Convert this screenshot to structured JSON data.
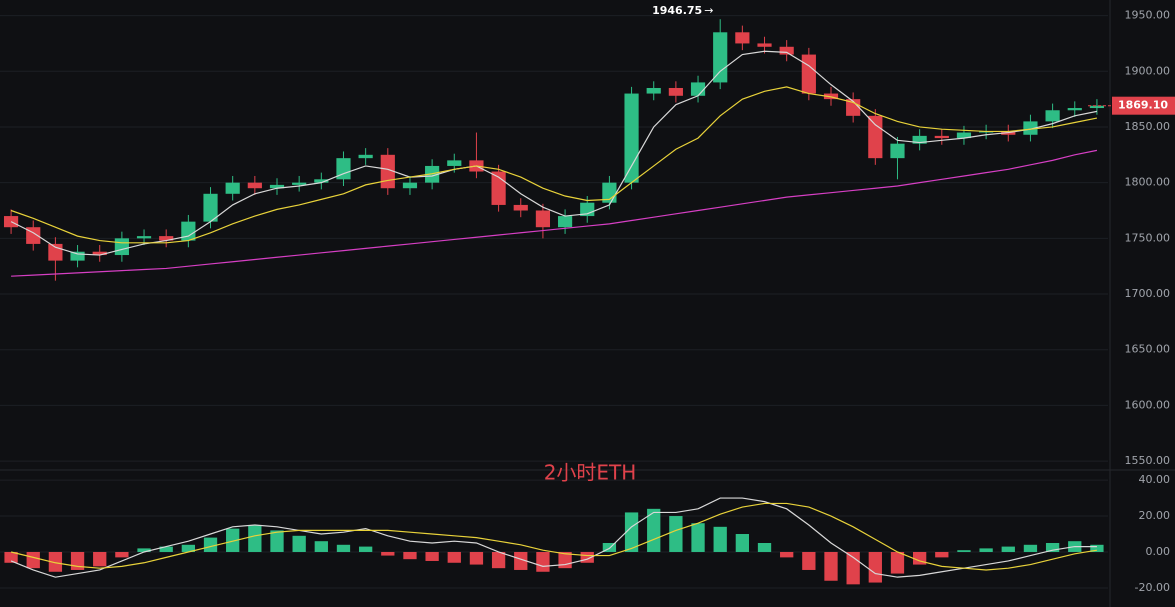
{
  "chart_data": [
    {
      "type": "candlestick",
      "up_color": "#2ebd85",
      "down_color": "#e0424b",
      "open": [
        1770,
        1760,
        1745,
        1730,
        1738,
        1735,
        1750,
        1752,
        1748,
        1765,
        1790,
        1800,
        1795,
        1798,
        1800,
        1803,
        1822,
        1825,
        1795,
        1800,
        1815,
        1820,
        1810,
        1780,
        1775,
        1760,
        1770,
        1782,
        1800,
        1880,
        1885,
        1878,
        1890,
        1935,
        1925,
        1922,
        1915,
        1880,
        1875,
        1860,
        1822,
        1835,
        1842,
        1840,
        1845,
        1846,
        1843,
        1855,
        1865,
        1867
      ],
      "high": [
        1776,
        1766,
        1751,
        1744,
        1744,
        1756,
        1758,
        1758,
        1771,
        1796,
        1806,
        1806,
        1804,
        1806,
        1809,
        1828,
        1831,
        1831,
        1806,
        1821,
        1826,
        1845,
        1816,
        1786,
        1781,
        1776,
        1788,
        1806,
        1886,
        1891,
        1891,
        1896,
        1946.75,
        1941,
        1931,
        1928,
        1921,
        1886,
        1881,
        1866,
        1841,
        1848,
        1848,
        1851,
        1852,
        1852,
        1861,
        1871,
        1873,
        1875
      ],
      "low": [
        1754,
        1739,
        1712,
        1724,
        1729,
        1729,
        1744,
        1742,
        1742,
        1759,
        1784,
        1789,
        1789,
        1792,
        1794,
        1797,
        1816,
        1789,
        1789,
        1794,
        1809,
        1804,
        1774,
        1769,
        1750,
        1754,
        1764,
        1776,
        1794,
        1874,
        1872,
        1872,
        1884,
        1919,
        1916,
        1909,
        1874,
        1869,
        1854,
        1816,
        1803,
        1829,
        1834,
        1834,
        1839,
        1837,
        1837,
        1849,
        1859,
        1861
      ],
      "close": [
        1760,
        1745,
        1730,
        1738,
        1735,
        1750,
        1752,
        1748,
        1765,
        1790,
        1800,
        1795,
        1798,
        1800,
        1803,
        1822,
        1825,
        1795,
        1800,
        1815,
        1820,
        1810,
        1780,
        1775,
        1760,
        1770,
        1782,
        1800,
        1880,
        1885,
        1878,
        1890,
        1935,
        1925,
        1922,
        1915,
        1880,
        1875,
        1860,
        1822,
        1835,
        1842,
        1840,
        1845,
        1846,
        1843,
        1855,
        1865,
        1867,
        1869.1
      ],
      "overlays": [
        {
          "color": "#d8d8d8",
          "values": [
            1765,
            1755,
            1742,
            1736,
            1735,
            1740,
            1745,
            1748,
            1752,
            1765,
            1780,
            1790,
            1795,
            1797,
            1800,
            1808,
            1815,
            1812,
            1805,
            1806,
            1812,
            1815,
            1805,
            1790,
            1778,
            1770,
            1772,
            1780,
            1815,
            1850,
            1870,
            1878,
            1900,
            1915,
            1918,
            1917,
            1905,
            1888,
            1873,
            1852,
            1838,
            1836,
            1838,
            1840,
            1843,
            1845,
            1848,
            1853,
            1860,
            1864
          ]
        },
        {
          "color": "#e8d23a",
          "values": [
            1775,
            1768,
            1760,
            1752,
            1748,
            1746,
            1746,
            1746,
            1748,
            1755,
            1763,
            1770,
            1776,
            1780,
            1785,
            1790,
            1798,
            1802,
            1805,
            1808,
            1812,
            1815,
            1812,
            1805,
            1795,
            1788,
            1784,
            1785,
            1800,
            1815,
            1830,
            1840,
            1860,
            1875,
            1882,
            1886,
            1880,
            1877,
            1872,
            1862,
            1855,
            1850,
            1848,
            1847,
            1846,
            1846,
            1848,
            1850,
            1854,
            1858
          ]
        },
        {
          "color": "#d63fc4",
          "values": [
            1716,
            1717,
            1718,
            1719,
            1720,
            1721,
            1722,
            1723,
            1725,
            1727,
            1729,
            1731,
            1733,
            1735,
            1737,
            1739,
            1741,
            1743,
            1745,
            1747,
            1749,
            1751,
            1753,
            1755,
            1757,
            1759,
            1761,
            1763,
            1766,
            1769,
            1772,
            1775,
            1778,
            1781,
            1784,
            1787,
            1789,
            1791,
            1793,
            1795,
            1797,
            1800,
            1803,
            1806,
            1809,
            1812,
            1816,
            1820,
            1825,
            1829
          ]
        }
      ],
      "last_price": {
        "value": 1869.1,
        "label": "1869.10"
      },
      "ylim": [
        1542,
        1964
      ],
      "yticks": [
        {
          "value": 1950,
          "label": "1950.00"
        },
        {
          "value": 1900,
          "label": "1900.00"
        },
        {
          "value": 1850,
          "label": "1850.00"
        },
        {
          "value": 1800,
          "label": "1800.00"
        },
        {
          "value": 1750,
          "label": "1750.00"
        },
        {
          "value": 1700,
          "label": "1700.00"
        },
        {
          "value": 1650,
          "label": "1650.00"
        },
        {
          "value": 1600,
          "label": "1600.00"
        },
        {
          "value": 1550,
          "label": "1550.00"
        }
      ],
      "grid": true
    },
    {
      "type": "macd",
      "title": "2小时ETH",
      "up_color": "#2ebd85",
      "down_color": "#e0424b",
      "values": [
        -6,
        -9,
        -11,
        -10,
        -8,
        -3,
        2,
        3,
        4,
        8,
        13,
        15,
        12,
        9,
        6,
        4,
        3,
        -2,
        -4,
        -5,
        -6,
        -7,
        -9,
        -10,
        -11,
        -9,
        -6,
        5,
        22,
        24,
        20,
        16,
        14,
        10,
        5,
        -3,
        -10,
        -16,
        -18,
        -17,
        -12,
        -7,
        -3,
        1,
        2,
        3,
        4,
        5,
        6,
        4
      ],
      "lines": [
        {
          "color": "#d8d8d8",
          "values": [
            -5,
            -10,
            -14,
            -12,
            -10,
            -5,
            0,
            3,
            6,
            10,
            14,
            15,
            14,
            12,
            10,
            11,
            13,
            9,
            6,
            5,
            6,
            5,
            0,
            -4,
            -8,
            -7,
            -4,
            2,
            14,
            22,
            22,
            24,
            30,
            30,
            28,
            24,
            15,
            5,
            -3,
            -12,
            -14,
            -13,
            -11,
            -9,
            -7,
            -5,
            -2,
            1,
            3,
            3
          ]
        },
        {
          "color": "#e8d23a",
          "values": [
            0,
            -3,
            -6,
            -8,
            -9,
            -8,
            -6,
            -3,
            0,
            3,
            6,
            9,
            11,
            12,
            12,
            12,
            12,
            12,
            11,
            10,
            9,
            8,
            6,
            4,
            1,
            -1,
            -2,
            -2,
            2,
            7,
            12,
            16,
            21,
            25,
            27,
            27,
            25,
            20,
            14,
            7,
            0,
            -5,
            -8,
            -9,
            -10,
            -9,
            -7,
            -4,
            -1,
            1
          ]
        }
      ],
      "ylim": [
        -30.6,
        45.6
      ],
      "yticks": [
        {
          "value": 40,
          "label": "40.00"
        },
        {
          "value": 20,
          "label": "20.00"
        },
        {
          "value": 0,
          "label": "0.00"
        },
        {
          "value": -20,
          "label": "-20.00"
        }
      ],
      "grid": true
    }
  ]
}
